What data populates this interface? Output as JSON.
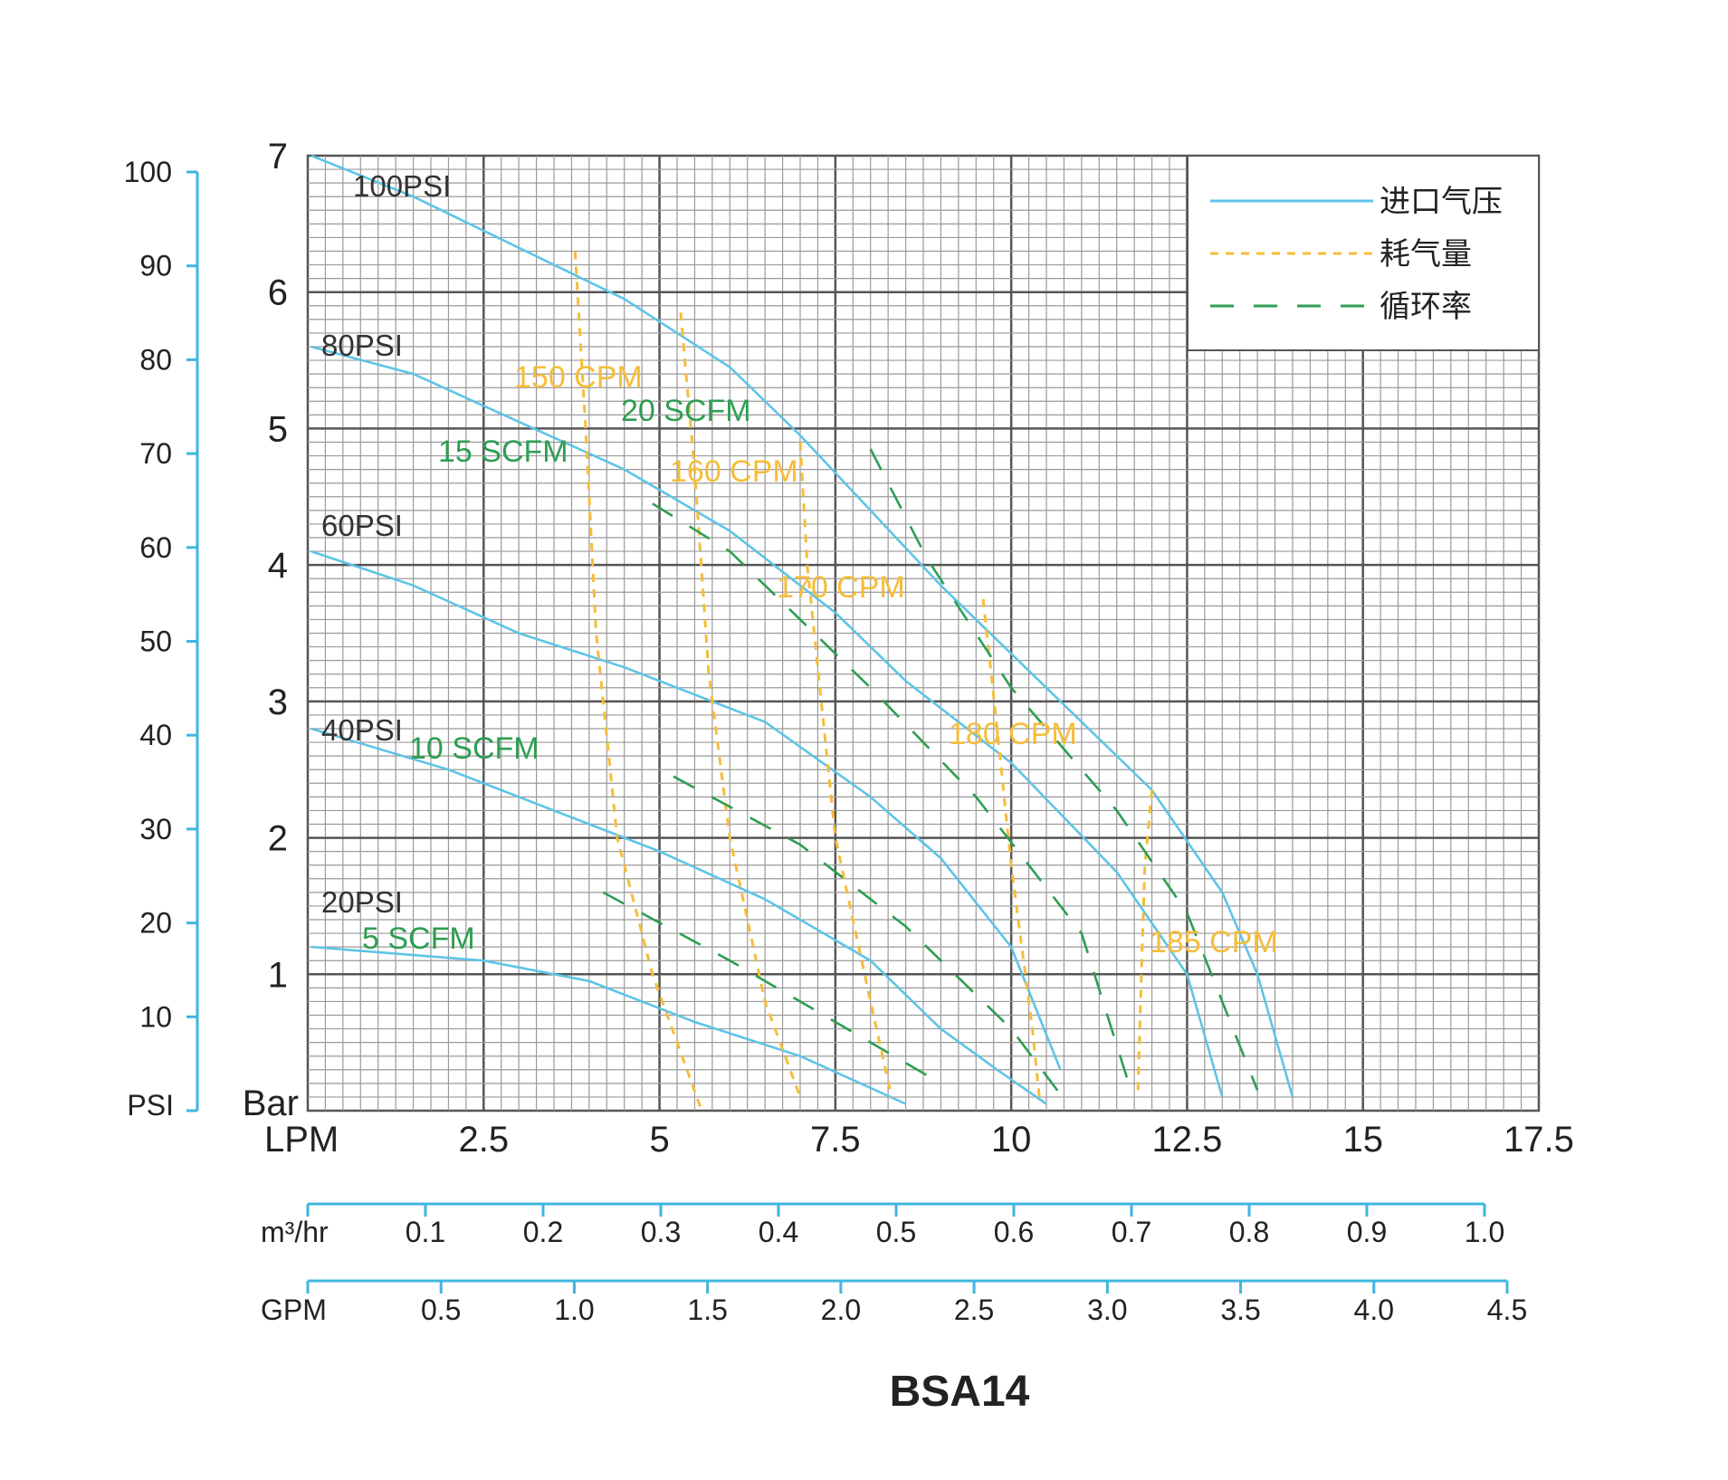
{
  "chart_data": {
    "type": "line",
    "title": "BSA14",
    "x_axis": {
      "unit": "LPM",
      "min": 0,
      "max": 17.5,
      "ticks": [
        2.5,
        5,
        7.5,
        10,
        12.5,
        15,
        17.5
      ]
    },
    "y_axis": {
      "unit": "Bar",
      "min": 0,
      "max": 7,
      "ticks": [
        1,
        2,
        3,
        4,
        5,
        6,
        7
      ]
    },
    "psi_axis": {
      "unit": "PSI",
      "max": 100,
      "ticks": [
        10,
        20,
        30,
        40,
        50,
        60,
        70,
        80,
        90,
        100
      ]
    },
    "m3hr_axis": {
      "unit": "m³/hr",
      "max": 1.0,
      "labels": [
        "0.1",
        "0.2",
        "0.3",
        "0.4",
        "0.5",
        "0.6",
        "0.7",
        "0.8",
        "0.9",
        "1.0"
      ]
    },
    "gpm_axis": {
      "unit": "GPM",
      "max": 4.5,
      "labels": [
        "0.5",
        "1.0",
        "1.5",
        "2.0",
        "2.5",
        "3.0",
        "3.5",
        "4.0",
        "4.5"
      ]
    },
    "grid": true,
    "legend": {
      "position": "top-right",
      "items": [
        {
          "label": "进口气压",
          "style": "solid",
          "color": "#5ec4e6"
        },
        {
          "label": "耗气量",
          "style": "dotted",
          "color": "#f6bd3a"
        },
        {
          "label": "循环率",
          "style": "dashed",
          "color": "#2e9e52"
        }
      ]
    },
    "pressure_curves": [
      {
        "name": "100PSI",
        "color": "#5ec4e6",
        "points": [
          [
            0.05,
            7.0
          ],
          [
            1.5,
            6.7
          ],
          [
            3.5,
            6.2
          ],
          [
            4.5,
            5.95
          ],
          [
            6.0,
            5.45
          ],
          [
            7.0,
            4.95
          ],
          [
            8.0,
            4.4
          ],
          [
            9.0,
            3.85
          ],
          [
            10.5,
            3.1
          ],
          [
            12.0,
            2.35
          ],
          [
            13.0,
            1.6
          ],
          [
            13.5,
            1.0
          ],
          [
            14.0,
            0.1
          ]
        ]
      },
      {
        "name": "80PSI",
        "color": "#5ec4e6",
        "points": [
          [
            0.05,
            5.6
          ],
          [
            1.5,
            5.4
          ],
          [
            3.0,
            5.05
          ],
          [
            4.5,
            4.7
          ],
          [
            6.0,
            4.25
          ],
          [
            7.5,
            3.65
          ],
          [
            8.5,
            3.15
          ],
          [
            10.0,
            2.55
          ],
          [
            11.5,
            1.75
          ],
          [
            12.5,
            1.0
          ],
          [
            13.0,
            0.1
          ]
        ]
      },
      {
        "name": "60PSI",
        "color": "#5ec4e6",
        "points": [
          [
            0.05,
            4.1
          ],
          [
            1.5,
            3.85
          ],
          [
            3.0,
            3.5
          ],
          [
            4.5,
            3.25
          ],
          [
            6.5,
            2.85
          ],
          [
            8.0,
            2.3
          ],
          [
            9.0,
            1.85
          ],
          [
            10.0,
            1.2
          ],
          [
            10.7,
            0.3
          ]
        ]
      },
      {
        "name": "40PSI",
        "color": "#5ec4e6",
        "points": [
          [
            0.05,
            2.8
          ],
          [
            2.0,
            2.5
          ],
          [
            3.5,
            2.2
          ],
          [
            5.0,
            1.9
          ],
          [
            6.5,
            1.55
          ],
          [
            8.0,
            1.1
          ],
          [
            9.0,
            0.6
          ],
          [
            9.8,
            0.3
          ],
          [
            10.5,
            0.05
          ]
        ]
      },
      {
        "name": "20PSI",
        "color": "#5ec4e6",
        "points": [
          [
            0.05,
            1.2
          ],
          [
            2.5,
            1.1
          ],
          [
            4.0,
            0.95
          ],
          [
            5.5,
            0.65
          ],
          [
            7.0,
            0.4
          ],
          [
            8.5,
            0.05
          ]
        ]
      }
    ],
    "air_consumption": [
      {
        "name": "150 CPM",
        "color": "#f6bd3a",
        "points": [
          [
            3.8,
            6.3
          ],
          [
            3.95,
            5.0
          ],
          [
            4.1,
            3.5
          ],
          [
            4.4,
            2.0
          ],
          [
            4.9,
            1.0
          ],
          [
            5.6,
            0.0
          ]
        ]
      },
      {
        "name": "160 CPM",
        "color": "#f6bd3a",
        "points": [
          [
            5.3,
            5.85
          ],
          [
            5.5,
            4.7
          ],
          [
            5.7,
            3.2
          ],
          [
            6.0,
            2.0
          ],
          [
            6.5,
            0.8
          ],
          [
            7.0,
            0.1
          ]
        ]
      },
      {
        "name": "170 CPM",
        "color": "#f6bd3a",
        "points": [
          [
            7.0,
            4.9
          ],
          [
            7.1,
            4.0
          ],
          [
            7.3,
            3.0
          ],
          [
            7.5,
            2.0
          ],
          [
            8.0,
            0.8
          ],
          [
            8.3,
            0.1
          ]
        ]
      },
      {
        "name": "180 CPM",
        "color": "#f6bd3a",
        "points": [
          [
            9.6,
            3.75
          ],
          [
            9.8,
            2.8
          ],
          [
            10.0,
            1.8
          ],
          [
            10.3,
            0.6
          ],
          [
            10.4,
            0.1
          ]
        ]
      },
      {
        "name": "185 CPM",
        "color": "#f6bd3a",
        "points": [
          [
            12.0,
            2.35
          ],
          [
            11.9,
            1.8
          ],
          [
            11.85,
            1.0
          ],
          [
            11.8,
            0.1
          ]
        ]
      }
    ],
    "flow_lines": [
      {
        "name": "5 SCFM",
        "color": "#2e9e52",
        "points": [
          [
            4.2,
            1.6
          ],
          [
            6.0,
            1.1
          ],
          [
            7.5,
            0.65
          ],
          [
            9.0,
            0.2
          ]
        ]
      },
      {
        "name": "10 SCFM",
        "color": "#2e9e52",
        "points": [
          [
            5.2,
            2.45
          ],
          [
            7.0,
            1.95
          ],
          [
            8.5,
            1.35
          ],
          [
            10.0,
            0.6
          ],
          [
            10.8,
            0.05
          ]
        ]
      },
      {
        "name": "15 SCFM",
        "color": "#2e9e52",
        "points": [
          [
            4.9,
            4.45
          ],
          [
            6.0,
            4.1
          ],
          [
            7.0,
            3.6
          ],
          [
            8.0,
            3.1
          ],
          [
            9.5,
            2.3
          ],
          [
            11.0,
            1.3
          ],
          [
            11.7,
            0.15
          ]
        ]
      },
      {
        "name": "20 SCFM",
        "color": "#2e9e52",
        "points": [
          [
            8.0,
            4.85
          ],
          [
            8.8,
            4.05
          ],
          [
            10.0,
            3.1
          ],
          [
            11.5,
            2.2
          ],
          [
            12.5,
            1.45
          ],
          [
            13.5,
            0.15
          ]
        ]
      }
    ]
  }
}
